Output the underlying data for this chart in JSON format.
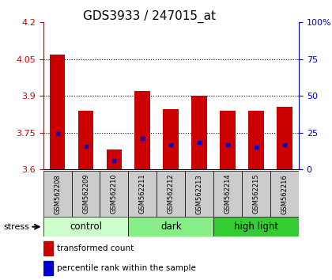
{
  "title": "GDS3933 / 247015_at",
  "samples": [
    "GSM562208",
    "GSM562209",
    "GSM562210",
    "GSM562211",
    "GSM562212",
    "GSM562213",
    "GSM562214",
    "GSM562215",
    "GSM562216"
  ],
  "bar_values": [
    4.07,
    3.84,
    3.68,
    3.92,
    3.845,
    3.9,
    3.84,
    3.84,
    3.855
  ],
  "bar_base": 3.6,
  "blue_dot_values": [
    3.745,
    3.695,
    3.635,
    3.725,
    3.7,
    3.71,
    3.7,
    3.69,
    3.7
  ],
  "bar_color": "#cc0000",
  "blue_dot_color": "#0000cc",
  "ylim_left": [
    3.6,
    4.2
  ],
  "yticks_left": [
    3.6,
    3.75,
    3.9,
    4.05,
    4.2
  ],
  "yticks_right": [
    0,
    25,
    50,
    75,
    100
  ],
  "ytick_labels_right": [
    "0",
    "25",
    "50",
    "75",
    "100%"
  ],
  "groups": [
    {
      "label": "control",
      "indices": [
        0,
        1,
        2
      ],
      "color": "#ccffcc"
    },
    {
      "label": "dark",
      "indices": [
        3,
        4,
        5
      ],
      "color": "#88ee88"
    },
    {
      "label": "high light",
      "indices": [
        6,
        7,
        8
      ],
      "color": "#33cc33"
    }
  ],
  "stress_label": "stress",
  "legend_items": [
    {
      "color": "#cc0000",
      "label": "transformed count"
    },
    {
      "color": "#0000cc",
      "label": "percentile rank within the sample"
    }
  ],
  "bar_width": 0.55,
  "tick_label_fontsize": 8,
  "title_fontsize": 11,
  "axis_color_left": "#cc0000",
  "axis_color_right": "#0000cc",
  "label_area_color": "#cccccc"
}
